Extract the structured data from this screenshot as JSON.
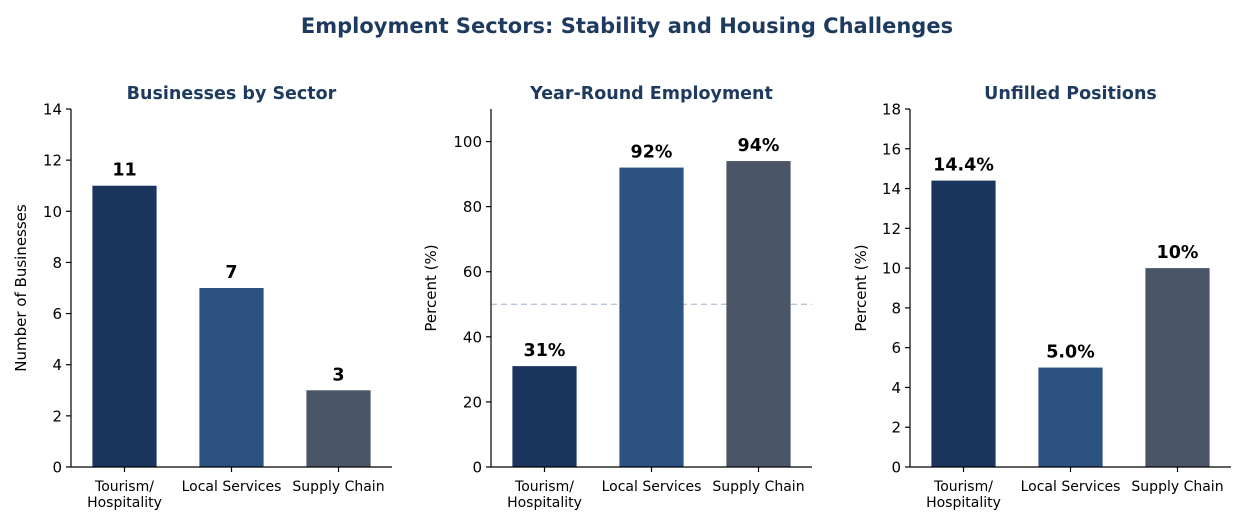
{
  "title": "Employment Sectors: Stability and Housing Challenges",
  "colors": {
    "title": "#1f3a5f",
    "bars": [
      "#1c355e",
      "#2c5282",
      "#4a5568"
    ],
    "reference_line": "#b8c4d8"
  },
  "chart_data": [
    {
      "type": "bar",
      "title": "Businesses by Sector",
      "ylabel": "Number of Businesses",
      "categories": [
        [
          "Tourism/",
          "Hospitality"
        ],
        [
          "Local Services"
        ],
        [
          "Supply Chain"
        ]
      ],
      "values": [
        11,
        7,
        3
      ],
      "value_labels": [
        "11",
        "7",
        "3"
      ],
      "ylim": [
        0,
        14
      ],
      "yticks": [
        0,
        2,
        4,
        6,
        8,
        10,
        12,
        14
      ],
      "grid": false,
      "reference_line": null
    },
    {
      "type": "bar",
      "title": "Year-Round Employment",
      "ylabel": "Percent (%)",
      "categories": [
        [
          "Tourism/",
          "Hospitality"
        ],
        [
          "Local Services"
        ],
        [
          "Supply Chain"
        ]
      ],
      "values": [
        31,
        92,
        94
      ],
      "value_labels": [
        "31%",
        "92%",
        "94%"
      ],
      "ylim": [
        0,
        110
      ],
      "yticks": [
        0,
        20,
        40,
        60,
        80,
        100
      ],
      "grid": false,
      "reference_line": 50
    },
    {
      "type": "bar",
      "title": "Unfilled Positions",
      "ylabel": "Percent (%)",
      "categories": [
        [
          "Tourism/",
          "Hospitality"
        ],
        [
          "Local Services"
        ],
        [
          "Supply Chain"
        ]
      ],
      "values": [
        14.4,
        5.0,
        10
      ],
      "value_labels": [
        "14.4%",
        "5.0%",
        "10%"
      ],
      "ylim": [
        0,
        18
      ],
      "yticks": [
        0,
        2,
        4,
        6,
        8,
        10,
        12,
        14,
        16,
        18
      ],
      "grid": false,
      "reference_line": null
    }
  ]
}
